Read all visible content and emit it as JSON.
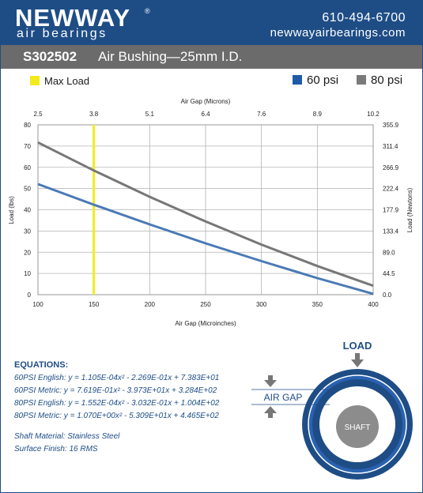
{
  "header": {
    "logo_word": "NEWWAY",
    "logo_reg": "®",
    "logo_sub": "air bearings",
    "phone": "610-494-6700",
    "website": "newwayairbearings.com"
  },
  "titlebar": {
    "model": "S302502",
    "subtitle": "Air Bushing—25mm I.D."
  },
  "legend": {
    "max_load": "Max Load",
    "series_60": "60 psi",
    "series_80": "80 psi"
  },
  "colors": {
    "brand_blue": "#1e4d86",
    "series_60": "#4a7ab5",
    "series_80": "#777777",
    "max_load": "#f2ea1d",
    "title_gray": "#6b6b6b"
  },
  "chart_data": {
    "type": "line",
    "xlabel_bottom": "Air Gap (Microinches)",
    "xlabel_top": "Air Gap (Microns)",
    "ylabel_left": "Load (lbs)",
    "ylabel_right": "Load (Newtons)",
    "xlim": [
      100,
      400
    ],
    "ylim": [
      0,
      80
    ],
    "x_ticks": [
      100,
      150,
      200,
      250,
      300,
      350,
      400
    ],
    "y_ticks": [
      0,
      10,
      20,
      30,
      40,
      50,
      60,
      70,
      80
    ],
    "top_ticks": [
      "2.5",
      "3.8",
      "5.1",
      "6.4",
      "7.6",
      "8.9",
      "10.2"
    ],
    "right_ticks": [
      "0.0",
      "44.5",
      "89.0",
      "133.4",
      "177.9",
      "222.4",
      "266.9",
      "311.4",
      "355.9"
    ],
    "max_load_x": 150,
    "grid": true,
    "series": [
      {
        "name": "60 psi",
        "x": [
          100,
          150,
          200,
          250,
          300,
          350,
          400
        ],
        "values": [
          52.1,
          42.4,
          33.1,
          24.2,
          15.8,
          7.8,
          0.4
        ]
      },
      {
        "name": "80 psi",
        "x": [
          100,
          150,
          200,
          250,
          300,
          350,
          400
        ],
        "values": [
          71.7,
          58.5,
          46.1,
          34.5,
          23.6,
          13.5,
          4.2
        ]
      }
    ]
  },
  "equations": {
    "heading": "EQUATIONS:",
    "lines": [
      "60PSI English:  y = 1.105E-04x² - 2.269E-01x + 7.383E+01",
      "60PSI Metric:  y = 7.619E-01x² - 3.973E+01x + 3.284E+02",
      "80PSI English:  y = 1.552E-04x² - 3.032E-01x + 1.004E+02",
      "80PSI Metric:  y = 1.070E+00x² - 5.309E+01x + 4.465E+02"
    ],
    "material": "Shaft Material:  Stainless Steel",
    "finish": "Surface Finish:  16 RMS"
  },
  "diagram": {
    "load_label": "LOAD",
    "air_gap_label": "AIR GAP",
    "shaft_label": "SHAFT"
  }
}
